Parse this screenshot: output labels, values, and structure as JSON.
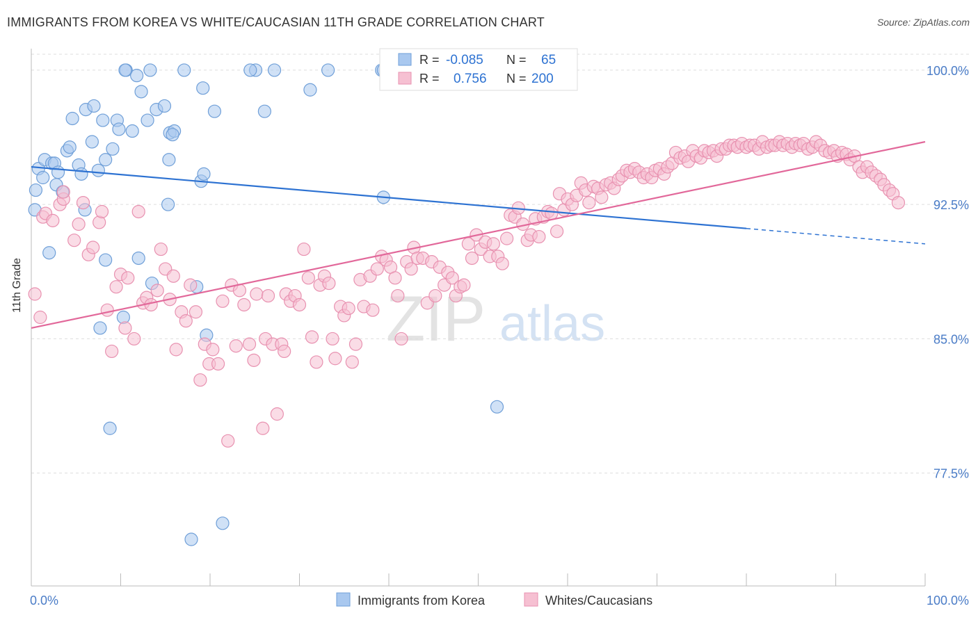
{
  "header": {
    "title": "IMMIGRANTS FROM KOREA VS WHITE/CAUCASIAN 11TH GRADE CORRELATION CHART",
    "source": "Source: ZipAtlas.com"
  },
  "watermark": {
    "zip": "ZIP",
    "atlas": "atlas"
  },
  "colors": {
    "blue_fill": "#a9c8ef",
    "blue_stroke": "#6f9fd8",
    "blue_line": "#2d72d2",
    "pink_fill": "#f6c0d2",
    "pink_stroke": "#e891b0",
    "pink_line": "#e2689a",
    "tick_label": "#4a7cc7",
    "grid": "#dddddd"
  },
  "legend_box": {
    "rows": [
      {
        "r_label": "R =",
        "r_value": "-0.085",
        "n_label": "N =",
        "n_value": "65"
      },
      {
        "r_label": "R =",
        "r_value": "0.756",
        "n_label": "N =",
        "n_value": "200"
      }
    ]
  },
  "chart_data": {
    "type": "scatter",
    "title": "IMMIGRANTS FROM KOREA VS WHITE/CAUCASIAN 11TH GRADE CORRELATION CHART",
    "xlabel": "",
    "ylabel": "11th Grade",
    "xlim": [
      0,
      100
    ],
    "ylim": [
      71.2,
      101.2
    ],
    "x_tick_labels": [
      "0.0%",
      "100.0%"
    ],
    "y_ticks": [
      100.0,
      92.5,
      85.0,
      77.5
    ],
    "y_tick_labels": [
      "100.0%",
      "92.5%",
      "85.0%",
      "77.5%"
    ],
    "grid": true,
    "legend_position": "bottom",
    "series": [
      {
        "name": "Immigrants from Korea",
        "color": "#a9c8ef",
        "stats": {
          "R": -0.085,
          "N": 65
        },
        "trend": {
          "x0": 0,
          "y0": 94.6,
          "x1": 100,
          "y1": 90.3,
          "solid_until": 80
        },
        "points": [
          [
            0.5,
            93.3
          ],
          [
            0.4,
            92.2
          ],
          [
            0.8,
            94.5
          ],
          [
            1.3,
            94.0
          ],
          [
            1.5,
            95.0
          ],
          [
            2.3,
            94.8
          ],
          [
            2.6,
            94.8
          ],
          [
            3.0,
            94.3
          ],
          [
            2.8,
            93.6
          ],
          [
            4.0,
            95.5
          ],
          [
            4.3,
            95.7
          ],
          [
            3.5,
            93.2
          ],
          [
            4.6,
            97.3
          ],
          [
            5.3,
            94.7
          ],
          [
            5.6,
            94.2
          ],
          [
            6.1,
            97.8
          ],
          [
            7.0,
            98.0
          ],
          [
            6.8,
            96.0
          ],
          [
            7.5,
            94.4
          ],
          [
            8.0,
            97.2
          ],
          [
            8.3,
            95.0
          ],
          [
            9.1,
            95.6
          ],
          [
            9.6,
            97.2
          ],
          [
            9.8,
            96.7
          ],
          [
            10.6,
            100.0
          ],
          [
            11.3,
            96.6
          ],
          [
            11.8,
            99.7
          ],
          [
            12.3,
            98.8
          ],
          [
            13.0,
            97.2
          ],
          [
            13.3,
            100.0
          ],
          [
            14.0,
            97.8
          ],
          [
            14.9,
            98.0
          ],
          [
            15.5,
            96.5
          ],
          [
            16.0,
            96.6
          ],
          [
            15.8,
            96.4
          ],
          [
            17.1,
            100.0
          ],
          [
            19.2,
            99.0
          ],
          [
            20.5,
            97.7
          ],
          [
            25.1,
            100.0
          ],
          [
            26.1,
            97.7
          ],
          [
            27.2,
            100.0
          ],
          [
            31.2,
            98.9
          ],
          [
            33.2,
            100.0
          ],
          [
            39.2,
            100.0
          ],
          [
            19.0,
            93.8
          ],
          [
            19.3,
            94.2
          ],
          [
            15.4,
            95.0
          ],
          [
            15.3,
            92.5
          ],
          [
            12.0,
            89.5
          ],
          [
            2.0,
            89.8
          ],
          [
            6.0,
            92.2
          ],
          [
            8.3,
            89.4
          ],
          [
            13.5,
            88.1
          ],
          [
            18.5,
            87.9
          ],
          [
            10.3,
            86.2
          ],
          [
            7.7,
            85.6
          ],
          [
            19.6,
            85.2
          ],
          [
            8.8,
            80.0
          ],
          [
            52.1,
            81.2
          ],
          [
            17.9,
            73.8
          ],
          [
            21.4,
            74.7
          ],
          [
            39.4,
            100.0
          ],
          [
            24.5,
            100.0
          ],
          [
            10.5,
            100.0
          ],
          [
            39.4,
            92.9
          ]
        ]
      },
      {
        "name": "Whites/Caucasians",
        "color": "#f6c0d2",
        "stats": {
          "R": 0.756,
          "N": 200
        },
        "trend": {
          "x0": 0,
          "y0": 85.6,
          "x1": 100,
          "y1": 96.0
        },
        "points": [
          [
            0.4,
            87.5
          ],
          [
            1.0,
            86.2
          ],
          [
            1.3,
            91.8
          ],
          [
            1.6,
            92.0
          ],
          [
            2.4,
            91.6
          ],
          [
            3.2,
            92.5
          ],
          [
            3.6,
            92.8
          ],
          [
            3.6,
            93.2
          ],
          [
            4.8,
            90.5
          ],
          [
            5.3,
            91.4
          ],
          [
            5.8,
            92.6
          ],
          [
            6.4,
            89.7
          ],
          [
            6.9,
            90.1
          ],
          [
            7.6,
            91.5
          ],
          [
            7.9,
            92.1
          ],
          [
            8.5,
            86.6
          ],
          [
            9.0,
            84.3
          ],
          [
            9.5,
            87.9
          ],
          [
            10.0,
            88.6
          ],
          [
            10.5,
            85.6
          ],
          [
            10.8,
            88.4
          ],
          [
            11.5,
            85.0
          ],
          [
            12.0,
            92.1
          ],
          [
            12.5,
            87.0
          ],
          [
            12.9,
            87.3
          ],
          [
            13.4,
            86.9
          ],
          [
            14.1,
            87.7
          ],
          [
            14.5,
            90.0
          ],
          [
            15.0,
            88.9
          ],
          [
            15.5,
            87.2
          ],
          [
            15.9,
            88.5
          ],
          [
            16.2,
            84.4
          ],
          [
            16.8,
            86.5
          ],
          [
            17.3,
            86.0
          ],
          [
            17.8,
            88.0
          ],
          [
            18.4,
            86.5
          ],
          [
            18.9,
            82.7
          ],
          [
            19.4,
            84.7
          ],
          [
            19.9,
            83.6
          ],
          [
            20.3,
            84.4
          ],
          [
            20.9,
            83.6
          ],
          [
            21.4,
            87.1
          ],
          [
            22.0,
            79.3
          ],
          [
            22.4,
            88.0
          ],
          [
            22.9,
            84.6
          ],
          [
            23.3,
            87.7
          ],
          [
            23.8,
            86.9
          ],
          [
            24.4,
            84.7
          ],
          [
            24.9,
            83.8
          ],
          [
            25.2,
            87.5
          ],
          [
            25.9,
            80.0
          ],
          [
            26.2,
            85.0
          ],
          [
            26.5,
            87.4
          ],
          [
            27.0,
            84.7
          ],
          [
            27.5,
            80.8
          ],
          [
            28.0,
            84.7
          ],
          [
            28.3,
            84.3
          ],
          [
            28.5,
            87.5
          ],
          [
            29.0,
            87.1
          ],
          [
            29.5,
            87.4
          ],
          [
            30.0,
            86.9
          ],
          [
            30.5,
            90.0
          ],
          [
            31.0,
            88.4
          ],
          [
            31.4,
            85.1
          ],
          [
            31.9,
            83.7
          ],
          [
            32.3,
            88.0
          ],
          [
            32.8,
            88.5
          ],
          [
            33.3,
            88.1
          ],
          [
            33.7,
            85.0
          ],
          [
            34.0,
            83.9
          ],
          [
            34.6,
            86.8
          ],
          [
            35.0,
            86.3
          ],
          [
            35.5,
            86.7
          ],
          [
            35.9,
            83.7
          ],
          [
            36.3,
            84.7
          ],
          [
            36.8,
            88.3
          ],
          [
            37.2,
            86.8
          ],
          [
            37.9,
            88.5
          ],
          [
            38.2,
            86.6
          ],
          [
            38.7,
            88.9
          ],
          [
            39.2,
            89.6
          ],
          [
            39.7,
            89.4
          ],
          [
            40.2,
            89.0
          ],
          [
            40.7,
            88.4
          ],
          [
            41.0,
            87.4
          ],
          [
            41.4,
            85.0
          ],
          [
            42.0,
            89.3
          ],
          [
            42.5,
            88.9
          ],
          [
            42.8,
            90.1
          ],
          [
            43.2,
            89.5
          ],
          [
            43.8,
            89.5
          ],
          [
            44.3,
            87.0
          ],
          [
            44.8,
            89.3
          ],
          [
            45.2,
            87.4
          ],
          [
            45.7,
            89.0
          ],
          [
            46.2,
            88.0
          ],
          [
            46.6,
            88.7
          ],
          [
            47.1,
            88.4
          ],
          [
            47.5,
            87.4
          ],
          [
            48.0,
            87.9
          ],
          [
            48.4,
            88.0
          ],
          [
            48.9,
            90.3
          ],
          [
            49.3,
            89.5
          ],
          [
            49.8,
            90.8
          ],
          [
            50.3,
            90.0
          ],
          [
            50.8,
            90.4
          ],
          [
            51.3,
            89.6
          ],
          [
            51.7,
            90.3
          ],
          [
            52.2,
            89.6
          ],
          [
            52.7,
            89.2
          ],
          [
            53.2,
            90.6
          ],
          [
            53.6,
            91.9
          ],
          [
            54.1,
            91.8
          ],
          [
            54.5,
            92.3
          ],
          [
            55.0,
            91.4
          ],
          [
            55.5,
            90.5
          ],
          [
            55.9,
            90.8
          ],
          [
            56.4,
            91.7
          ],
          [
            56.8,
            90.7
          ],
          [
            57.3,
            91.8
          ],
          [
            57.8,
            92.1
          ],
          [
            58.2,
            92.0
          ],
          [
            58.8,
            91.0
          ],
          [
            59.1,
            93.1
          ],
          [
            59.6,
            92.2
          ],
          [
            60.0,
            92.8
          ],
          [
            60.5,
            92.5
          ],
          [
            61.0,
            93.0
          ],
          [
            61.5,
            93.7
          ],
          [
            62.0,
            93.3
          ],
          [
            62.4,
            92.6
          ],
          [
            62.9,
            93.5
          ],
          [
            63.4,
            93.4
          ],
          [
            63.8,
            92.9
          ],
          [
            64.3,
            93.6
          ],
          [
            64.8,
            93.7
          ],
          [
            65.2,
            93.4
          ],
          [
            65.7,
            93.9
          ],
          [
            66.1,
            94.1
          ],
          [
            66.6,
            94.4
          ],
          [
            67.0,
            94.3
          ],
          [
            67.5,
            94.5
          ],
          [
            68.0,
            94.3
          ],
          [
            68.5,
            94.0
          ],
          [
            68.9,
            94.2
          ],
          [
            69.4,
            94.0
          ],
          [
            69.8,
            94.4
          ],
          [
            70.3,
            94.5
          ],
          [
            70.8,
            94.2
          ],
          [
            71.2,
            94.6
          ],
          [
            71.7,
            94.8
          ],
          [
            72.1,
            95.4
          ],
          [
            72.6,
            95.1
          ],
          [
            73.1,
            95.2
          ],
          [
            73.5,
            94.9
          ],
          [
            74.0,
            95.5
          ],
          [
            74.4,
            95.2
          ],
          [
            74.9,
            95.1
          ],
          [
            75.3,
            95.5
          ],
          [
            75.8,
            95.4
          ],
          [
            76.3,
            95.5
          ],
          [
            76.7,
            95.2
          ],
          [
            77.2,
            95.6
          ],
          [
            77.7,
            95.6
          ],
          [
            78.1,
            95.8
          ],
          [
            78.6,
            95.8
          ],
          [
            79.0,
            95.7
          ],
          [
            79.5,
            95.9
          ],
          [
            80.0,
            95.7
          ],
          [
            80.4,
            95.8
          ],
          [
            80.9,
            95.8
          ],
          [
            81.4,
            95.6
          ],
          [
            81.8,
            96.0
          ],
          [
            82.3,
            95.7
          ],
          [
            82.8,
            95.8
          ],
          [
            83.2,
            95.8
          ],
          [
            83.7,
            96.0
          ],
          [
            84.1,
            95.8
          ],
          [
            84.6,
            95.9
          ],
          [
            85.1,
            95.7
          ],
          [
            85.5,
            95.9
          ],
          [
            86.0,
            95.8
          ],
          [
            86.4,
            95.9
          ],
          [
            86.9,
            95.6
          ],
          [
            87.4,
            95.7
          ],
          [
            87.8,
            96.0
          ],
          [
            88.3,
            95.8
          ],
          [
            88.8,
            95.5
          ],
          [
            89.3,
            95.4
          ],
          [
            89.8,
            95.5
          ],
          [
            90.2,
            95.2
          ],
          [
            90.7,
            95.4
          ],
          [
            91.2,
            95.3
          ],
          [
            91.6,
            95.0
          ],
          [
            92.1,
            95.2
          ],
          [
            92.6,
            94.6
          ],
          [
            93.0,
            94.3
          ],
          [
            93.5,
            94.6
          ],
          [
            94.0,
            94.3
          ],
          [
            94.5,
            94.1
          ],
          [
            95.0,
            93.9
          ],
          [
            95.4,
            93.6
          ],
          [
            96.0,
            93.3
          ],
          [
            96.4,
            93.1
          ],
          [
            97.0,
            92.6
          ]
        ]
      }
    ]
  },
  "legend": {
    "items": [
      {
        "label": "Immigrants from Korea"
      },
      {
        "label": "Whites/Caucasians"
      }
    ]
  }
}
